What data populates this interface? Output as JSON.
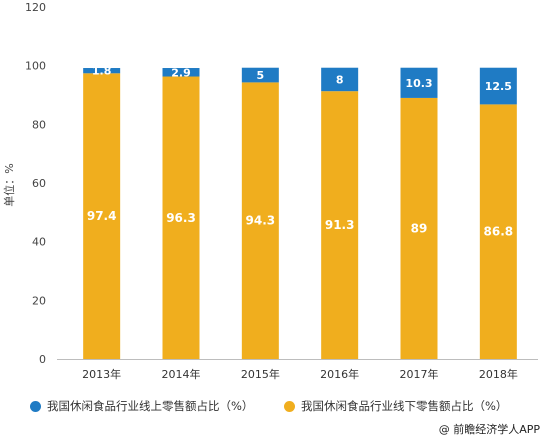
{
  "chart_data": {
    "type": "bar",
    "stacked": true,
    "categories": [
      "2013年",
      "2014年",
      "2015年",
      "2016年",
      "2017年",
      "2018年"
    ],
    "series": [
      {
        "name": "我国休闲食品行业线下零售额占比（%）",
        "values": [
          97.4,
          96.3,
          94.3,
          91.3,
          89,
          86.8
        ],
        "color": "#F0AE1E"
      },
      {
        "name": "我国休闲食品行业线上零售额占比（%）",
        "values": [
          1.8,
          2.9,
          5,
          8,
          10.3,
          12.5
        ],
        "color": "#1F7BC4"
      }
    ],
    "ylabel": "单位：%",
    "ylim": [
      0,
      120
    ],
    "yticks": [
      "0",
      "20",
      "40",
      "60",
      "80",
      "100",
      "120"
    ],
    "grid": false,
    "legend_position": "bottom"
  },
  "legend": {
    "online": "我国休闲食品行业线上零售额占比（%）",
    "offline": "我国休闲食品行业线下零售额占比（%）"
  },
  "source": "@ 前瞻经济学人APP"
}
